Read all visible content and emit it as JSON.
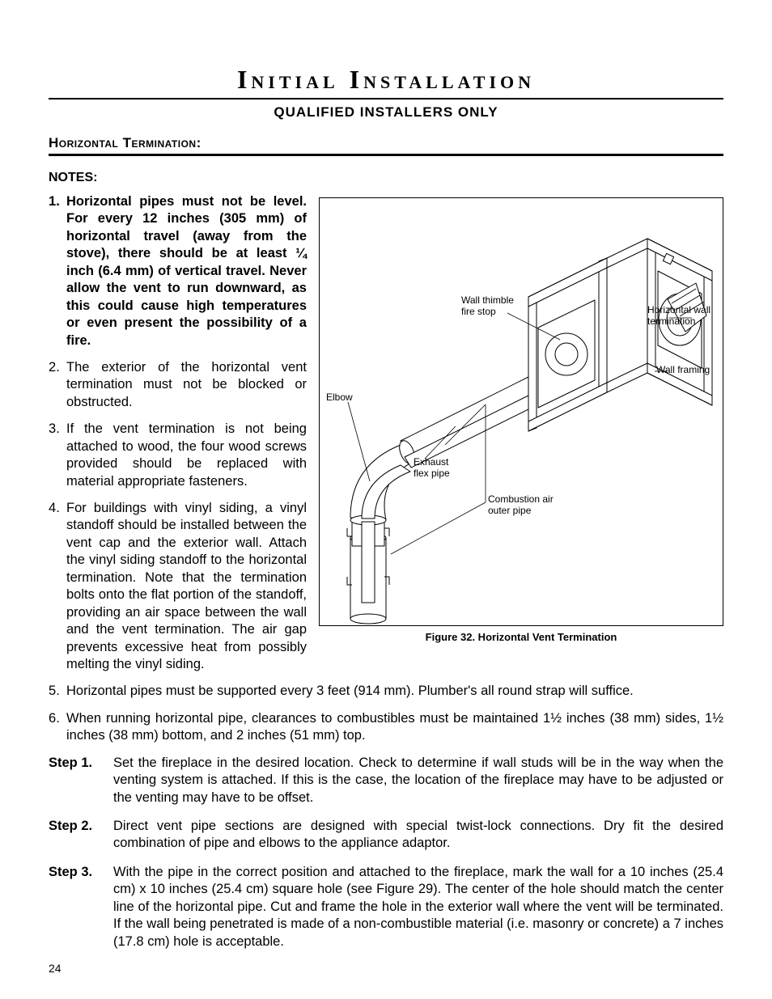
{
  "title": "Initial Installation",
  "subtitle": "qualified installers only",
  "section_header": "Horizontal Termination:",
  "notes_label": "NOTES:",
  "notes": [
    {
      "bold": true,
      "text": "Horizontal pipes must not be level. For every 12 inches (305 mm) of horizontal travel (away from the stove), there should be at least ¼ inch (6.4 mm) of vertical travel. Never allow the vent to run downward, as this could cause high temperatures or even present the possibility of a fire."
    },
    {
      "bold": false,
      "text": "The exterior of the horizontal vent termination must not be blocked or obstructed."
    },
    {
      "bold": false,
      "text": "If the vent termination is not being attached to wood, the four wood screws provided should be replaced with material appropriate fasteners."
    },
    {
      "bold": false,
      "text": "For buildings with vinyl siding, a vinyl standoff should be installed between the vent cap and the exterior wall. Attach the vinyl siding standoff to the horizontal termination. Note that the termination bolts onto the flat portion of the standoff, providing an air space between the wall and the vent termination. The air gap prevents excessive heat from possibly melting the vinyl siding."
    },
    {
      "bold": false,
      "text": "Horizontal pipes must be supported every 3 feet (914 mm). Plumber's all round strap will suffice."
    },
    {
      "bold": false,
      "text": "When running horizontal pipe, clearances to combustibles must be maintained 1½ inches (38 mm) sides, 1½ inches (38 mm) bottom, and 2 inches (51 mm) top."
    }
  ],
  "steps": [
    {
      "label": "Step 1.",
      "text": "Set the fireplace in the desired location. Check to determine if wall studs will be in the way when the venting system is attached. If this is the case, the location of the fireplace may have to be adjusted or the venting may have to be offset."
    },
    {
      "label": "Step 2.",
      "text": "Direct vent pipe sections are designed with special twist-lock connections. Dry fit the desired combination of pipe and elbows to the appliance adaptor."
    },
    {
      "label": "Step 3.",
      "text": "With the pipe in the correct position and attached to the fireplace, mark the wall for a 10 inches (25.4 cm) x 10 inches (25.4 cm) square hole (see Figure 29). The center of the hole should match the center line of the horizontal pipe. Cut and frame the hole in the exterior wall where the vent will be terminated. If the wall being penetrated is made of a non-combustible material (i.e. masonry or concrete) a 7 inches (17.8 cm) hole is acceptable."
    }
  ],
  "figure": {
    "caption": "Figure 32.  Horizontal Vent Termination",
    "labels": {
      "wall_thimble": "Wall thimble\nfire stop",
      "horizontal_wall": "Horizontal wall\ntermination",
      "wall_framing": "Wall framing",
      "elbow": "Elbow",
      "exhaust": "Exhaust\nflex pipe",
      "combustion": "Combustion air\nouter pipe"
    },
    "stroke": "#000000",
    "fill": "#ffffff"
  },
  "page_number": "24"
}
